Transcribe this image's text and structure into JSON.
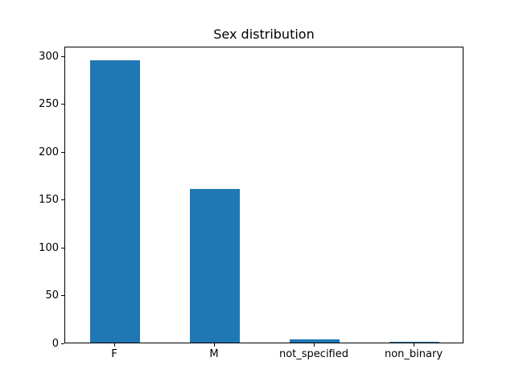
{
  "window": {
    "background_color": "#ffffff"
  },
  "chart_data": {
    "type": "bar",
    "title": "Sex distribution",
    "categories": [
      "F",
      "M",
      "not_specified",
      "non_binary"
    ],
    "values": [
      295,
      160,
      3,
      1
    ],
    "xlabel": "",
    "ylabel": "",
    "ylim": [
      0,
      309.75
    ],
    "yticks": [
      0,
      50,
      100,
      150,
      200,
      250,
      300
    ],
    "bar_color": "#1f77b4",
    "text_color": "#000000",
    "spine_color": "#000000",
    "grid": false,
    "legend": "none",
    "bar_width_fraction": 0.5,
    "tick_label_rotation": 0
  }
}
